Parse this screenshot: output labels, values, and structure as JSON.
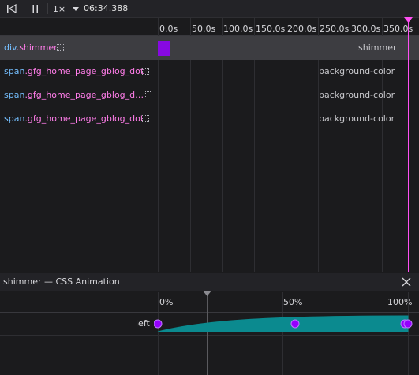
{
  "toolbar": {
    "rewind_icon": "rewind-icon",
    "pause_icon": "pause-icon",
    "playback_rate": "1×",
    "rate_dropdown_icon": "chevron-down-icon",
    "current_time": "06:34.388"
  },
  "timeline": {
    "ticks": [
      "0.0s",
      "50.0s",
      "100.0s",
      "150.0s",
      "200.0s",
      "250.0s",
      "300.0s",
      "350.0s"
    ],
    "scrubber_color": "#ff4ff3"
  },
  "animations": [
    {
      "tag": "div",
      "class": ".shimmer",
      "name": "shimmer",
      "selected": true,
      "color": "#9400ff"
    },
    {
      "tag": "span",
      "class": ".gfg_home_page_gblog_dot",
      "name": "background-color",
      "selected": false
    },
    {
      "tag": "span",
      "class": ".gfg_home_page_gblog_d…",
      "name": "background-color",
      "selected": false
    },
    {
      "tag": "span",
      "class": ".gfg_home_page_gblog_dot",
      "name": "background-color",
      "selected": false
    }
  ],
  "detail": {
    "title": "shimmer — CSS Animation",
    "close_icon": "close-icon",
    "percent_ticks": [
      "0%",
      "50%",
      "100%"
    ],
    "property": "left",
    "curve_color": "#0b8a8f",
    "keyframe_color": "#9400ff"
  }
}
